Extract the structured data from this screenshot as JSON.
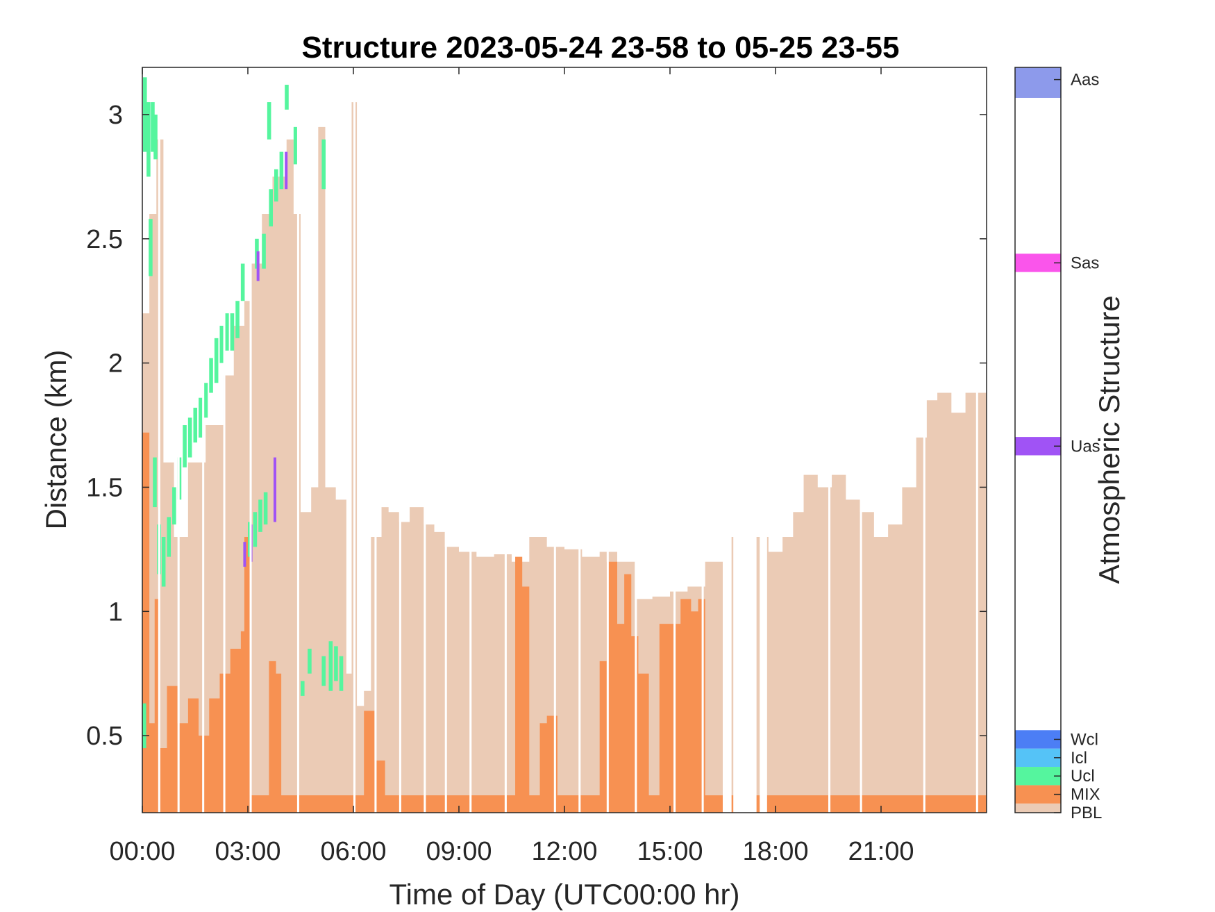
{
  "chart_data": {
    "type": "bar",
    "title": "Structure 2023-05-24 23-58 to 05-25 23-55",
    "xlabel": "Time of Day (UTC00:00 hr)",
    "ylabel": "Distance (km)",
    "xlim": [
      0,
      24
    ],
    "ylim": [
      0.19,
      3.19
    ],
    "x_ticks": [
      0,
      3,
      6,
      9,
      12,
      15,
      18,
      21
    ],
    "x_tick_labels": [
      "00:00",
      "03:00",
      "06:00",
      "09:00",
      "12:00",
      "15:00",
      "18:00",
      "21:00"
    ],
    "y_ticks": [
      0.5,
      1,
      1.5,
      2,
      2.5,
      3
    ],
    "y_tick_labels": [
      "0.5",
      "1",
      "1.5",
      "2",
      "2.5",
      "3"
    ],
    "base_km": 0.19,
    "gap_times": [
      0.45,
      1.0,
      1.7,
      2.3,
      3.05,
      4.4,
      6.0,
      6.6,
      7.3,
      8.0,
      8.6,
      9.3,
      10.3,
      11.7,
      12.4,
      13.2,
      14.0,
      15.1,
      15.9,
      16.5,
      16.8,
      17.1,
      17.4,
      17.7,
      19.5,
      20.4,
      22.2,
      23.7
    ],
    "gap_width_hr": 0.06,
    "no_data_ranges": [
      [
        16.55,
        16.75
      ],
      [
        16.85,
        17.45
      ],
      [
        17.55,
        17.75
      ]
    ],
    "pbl_profile": {
      "x": [
        0,
        0.2,
        0.4,
        0.6,
        0.9,
        1.3,
        1.8,
        2.3,
        2.6,
        2.9,
        3.1,
        3.4,
        3.7,
        4.1,
        4.3,
        4.5,
        4.8,
        5.0,
        5.2,
        5.5,
        5.8,
        5.95,
        6.1,
        6.3,
        6.5,
        6.8,
        7.0,
        7.3,
        7.6,
        8.0,
        8.3,
        8.6,
        9.0,
        9.5,
        10.0,
        10.5,
        11.0,
        11.5,
        12.0,
        12.5,
        13.0,
        13.5,
        14.0,
        14.5,
        15.0,
        15.5,
        16.0,
        16.5,
        17.8,
        18.2,
        18.5,
        18.8,
        19.2,
        19.6,
        20.0,
        20.4,
        20.8,
        21.2,
        21.6,
        22.0,
        22.3,
        22.6,
        23.0,
        23.4,
        24.0
      ],
      "y": [
        2.2,
        2.6,
        2.9,
        1.6,
        1.3,
        1.6,
        1.75,
        1.95,
        2.15,
        2.25,
        2.4,
        2.6,
        2.75,
        2.9,
        2.6,
        1.4,
        1.5,
        2.95,
        1.5,
        1.45,
        0.75,
        3.05,
        0.62,
        0.68,
        1.3,
        1.42,
        1.4,
        1.36,
        1.42,
        1.35,
        1.32,
        1.26,
        1.24,
        1.22,
        1.23,
        1.2,
        1.3,
        1.26,
        1.25,
        1.22,
        1.24,
        1.2,
        1.05,
        1.06,
        1.08,
        1.1,
        1.2,
        1.3,
        1.24,
        1.3,
        1.4,
        1.55,
        1.5,
        1.55,
        1.45,
        1.4,
        1.3,
        1.35,
        1.5,
        1.7,
        1.85,
        1.88,
        1.8,
        1.88,
        1.9
      ]
    },
    "mix_profile": {
      "x": [
        0,
        0.2,
        0.35,
        0.5,
        0.7,
        1.0,
        1.3,
        1.6,
        1.9,
        2.2,
        2.5,
        2.8,
        2.9,
        3.05,
        3.2,
        3.6,
        3.8,
        3.95,
        4.2,
        5.0,
        6.0,
        6.3,
        6.6,
        6.9,
        7.4,
        10.4,
        10.6,
        10.8,
        11.0,
        11.3,
        11.5,
        11.8,
        12.7,
        13.0,
        13.2,
        13.5,
        13.7,
        13.9,
        14.1,
        14.4,
        14.7,
        15.0,
        15.3,
        15.6,
        15.8,
        16.0,
        16.4,
        17.8,
        18.2,
        24.0
      ],
      "y": [
        1.72,
        0.55,
        1.05,
        0.45,
        0.7,
        0.55,
        0.65,
        0.5,
        0.65,
        0.75,
        0.85,
        0.92,
        1.3,
        0.26,
        0.26,
        0.8,
        0.75,
        0.26,
        0.26,
        0.26,
        0.26,
        0.6,
        0.4,
        0.26,
        0.26,
        0.26,
        1.22,
        1.1,
        0.26,
        0.55,
        0.58,
        0.26,
        0.26,
        0.8,
        1.2,
        0.95,
        1.15,
        0.9,
        0.75,
        0.26,
        0.95,
        0.95,
        1.05,
        1.0,
        1.05,
        0.26,
        0.26,
        0.26,
        0.26,
        0.26
      ]
    },
    "ucl_segments": [
      [
        0.0,
        0.45,
        0.63
      ],
      [
        0.02,
        2.85,
        3.15
      ],
      [
        0.12,
        2.75,
        3.05
      ],
      [
        0.24,
        2.85,
        3.05
      ],
      [
        0.32,
        2.82,
        3.0
      ],
      [
        0.18,
        2.35,
        2.58
      ],
      [
        0.3,
        1.42,
        1.62
      ],
      [
        0.42,
        1.15,
        1.35
      ],
      [
        0.55,
        1.1,
        1.3
      ],
      [
        0.7,
        1.22,
        1.38
      ],
      [
        0.85,
        1.35,
        1.5
      ],
      [
        1.0,
        1.45,
        1.62
      ],
      [
        1.15,
        1.58,
        1.75
      ],
      [
        1.3,
        1.62,
        1.78
      ],
      [
        1.45,
        1.68,
        1.82
      ],
      [
        1.6,
        1.7,
        1.86
      ],
      [
        1.75,
        1.78,
        1.92
      ],
      [
        1.9,
        1.88,
        2.02
      ],
      [
        2.05,
        1.92,
        2.1
      ],
      [
        2.2,
        2.0,
        2.15
      ],
      [
        2.35,
        2.05,
        2.2
      ],
      [
        2.5,
        2.05,
        2.2
      ],
      [
        2.65,
        2.1,
        2.25
      ],
      [
        2.8,
        2.25,
        2.4
      ],
      [
        3.0,
        1.22,
        1.36
      ],
      [
        3.15,
        1.26,
        1.4
      ],
      [
        3.3,
        1.32,
        1.45
      ],
      [
        3.45,
        1.35,
        1.48
      ],
      [
        3.2,
        2.38,
        2.5
      ],
      [
        3.4,
        2.38,
        2.52
      ],
      [
        3.6,
        2.55,
        2.7
      ],
      [
        3.75,
        2.65,
        2.78
      ],
      [
        3.9,
        2.7,
        2.85
      ],
      [
        3.55,
        2.9,
        3.05
      ],
      [
        4.05,
        3.02,
        3.12
      ],
      [
        4.3,
        2.8,
        2.95
      ],
      [
        4.5,
        0.66,
        0.72
      ],
      [
        4.7,
        0.75,
        0.85
      ],
      [
        5.1,
        0.7,
        0.82
      ],
      [
        5.3,
        0.68,
        0.88
      ],
      [
        5.45,
        0.72,
        0.86
      ],
      [
        5.6,
        0.68,
        0.82
      ],
      [
        5.1,
        2.7,
        2.9
      ]
    ],
    "uas_segments": [
      [
        2.87,
        1.18,
        1.28
      ],
      [
        3.05,
        1.2,
        1.35
      ],
      [
        3.25,
        2.33,
        2.45
      ],
      [
        3.73,
        1.36,
        1.62
      ],
      [
        4.05,
        2.7,
        2.85
      ]
    ],
    "colorbar": {
      "label": "Atmospheric Structure",
      "items": [
        {
          "name": "PBL",
          "color": "#ebcbb5",
          "position": 0.0
        },
        {
          "name": "MIX",
          "color": "#f79152",
          "position": 0.075
        },
        {
          "name": "Ucl",
          "color": "#55f59e",
          "position": 0.15
        },
        {
          "name": "Icl",
          "color": "#55c3f7",
          "position": 0.225
        },
        {
          "name": "Wcl",
          "color": "#4c7ef5",
          "position": 0.3
        },
        {
          "name": "Uas",
          "color": "#a053f5",
          "position": 1.5
        },
        {
          "name": "Sas",
          "color": "#fa55eb",
          "position": 2.25
        },
        {
          "name": "Aas",
          "color": "#8d9aeb",
          "position": 3.0
        }
      ]
    },
    "colors": {
      "pbl": "#ebcbb5",
      "mix": "#f79152",
      "ucl": "#55f59e",
      "uas": "#a053f5"
    },
    "grid": false,
    "legend": "colorbar-right"
  }
}
